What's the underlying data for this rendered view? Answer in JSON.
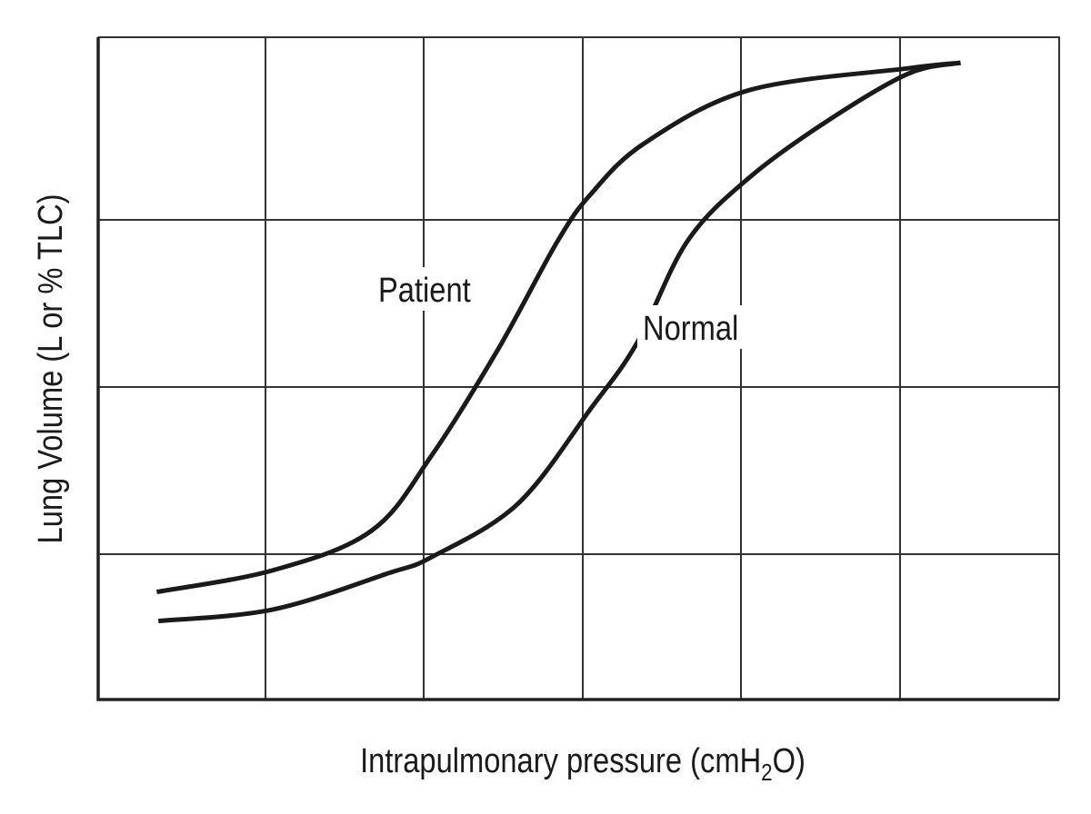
{
  "chart_data": {
    "type": "line",
    "title": "",
    "xlabel": "Intrapulmonary pressure (cmH2O)",
    "xlabel_parts": {
      "pre": "Intrapulmonary pressure (cmH",
      "sub": "2",
      "post": "O)"
    },
    "ylabel": "Lung Volume (L or % TLC)",
    "grid": true,
    "x_ticks_labeled": false,
    "y_ticks_labeled": false,
    "grid_columns": 6,
    "grid_rows": 4,
    "xlim": [
      0,
      6
    ],
    "ylim": [
      0,
      4
    ],
    "legend": null,
    "annotations": [
      {
        "text": "Patient",
        "x": 2.5,
        "y": 2.45
      },
      {
        "text": "Normal",
        "x": 3.8,
        "y": 2.2
      }
    ],
    "series": [
      {
        "name": "Patient",
        "x": [
          0.35,
          1.05,
          1.67,
          2.05,
          2.47,
          2.84,
          3.05,
          3.39,
          4.05,
          5.05,
          5.38
        ],
        "y": [
          0.74,
          0.89,
          1.14,
          1.59,
          2.23,
          2.87,
          3.14,
          3.42,
          3.71,
          3.83,
          3.86
        ]
      },
      {
        "name": "Normal",
        "x": [
          0.36,
          1.05,
          1.78,
          2.05,
          2.59,
          3.05,
          3.34,
          3.66,
          4.05,
          4.54,
          5.05,
          5.38
        ],
        "y": [
          0.54,
          0.62,
          0.87,
          0.98,
          1.3,
          1.87,
          2.26,
          2.87,
          3.23,
          3.54,
          3.8,
          3.86
        ]
      }
    ],
    "colors": {
      "curve": "#1a1a1a",
      "grid": "#333333",
      "axis": "#222222"
    }
  }
}
